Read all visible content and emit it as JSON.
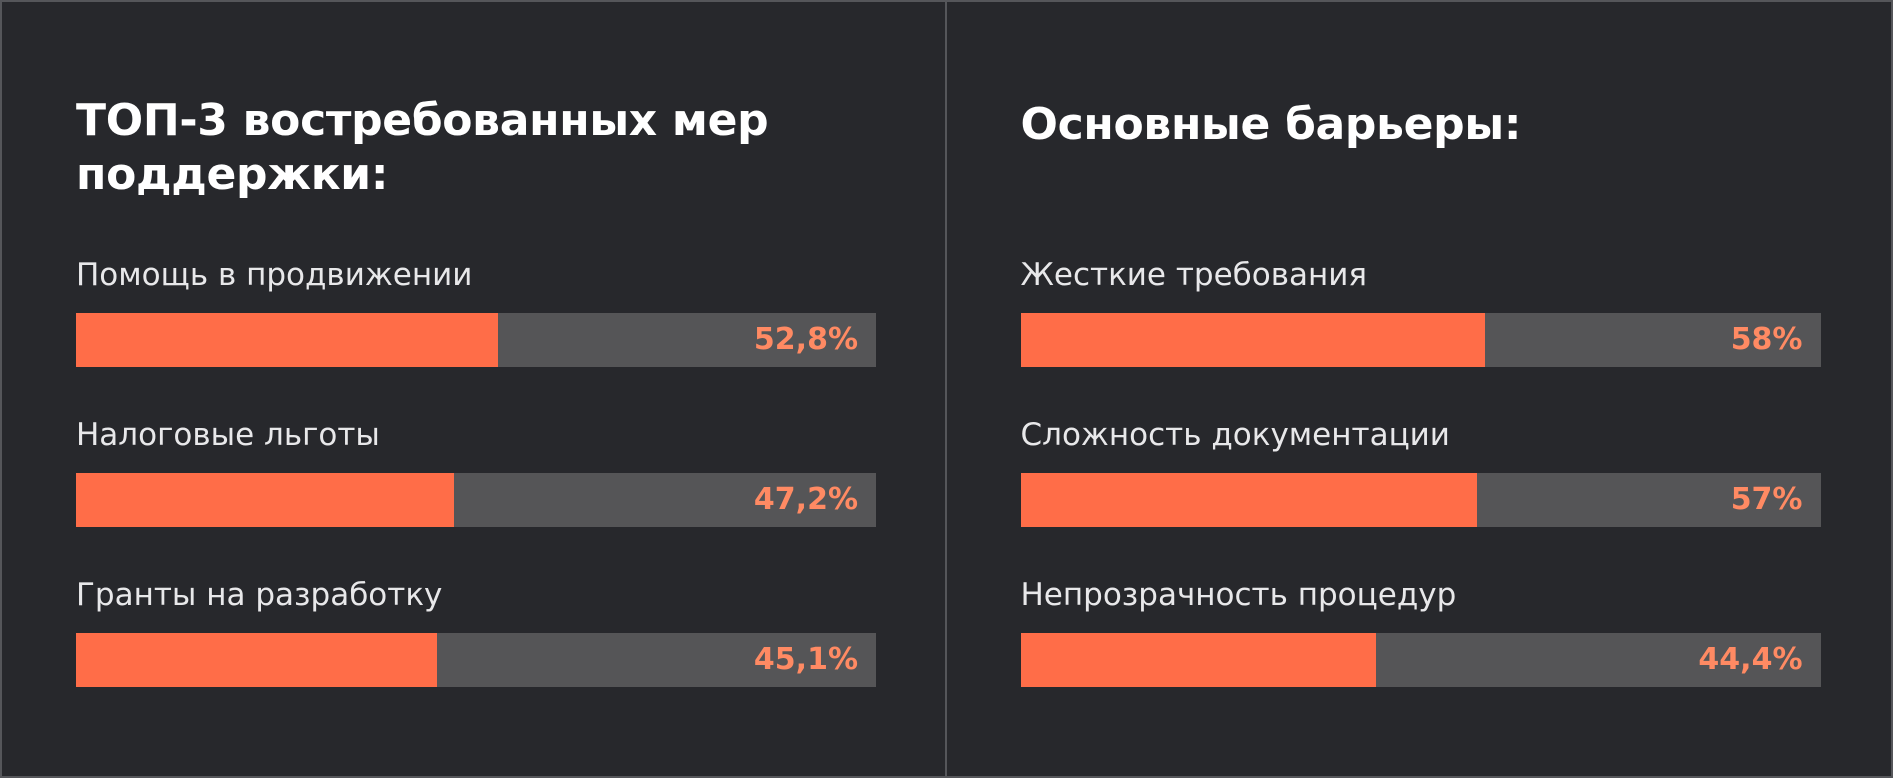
{
  "chart_data": [
    {
      "type": "bar",
      "orientation": "horizontal",
      "title": "ТОП-3 востребованных мер поддержки:",
      "categories": [
        "Помощь в продвижении",
        "Налоговые льготы",
        "Гранты на разработку"
      ],
      "values": [
        52.8,
        47.2,
        45.1
      ],
      "value_labels": [
        "52,8%",
        "47,2%",
        "45,1%"
      ],
      "xlim": [
        0,
        100
      ],
      "grid": false
    },
    {
      "type": "bar",
      "orientation": "horizontal",
      "title": "Основные барьеры:",
      "categories": [
        "Жесткие требования",
        "Сложность документации",
        "Непрозрачность процедур"
      ],
      "values": [
        58,
        57,
        44.4
      ],
      "value_labels": [
        "58%",
        "57%",
        "44,4%"
      ],
      "xlim": [
        0,
        100
      ],
      "grid": false
    }
  ],
  "colors": {
    "background": "#27282c",
    "bar_fill": "#ff6d48",
    "bar_track": "#555557",
    "value_text": "#ff8a63",
    "label_text": "#e8e8ea",
    "title_text": "#ffffff"
  }
}
